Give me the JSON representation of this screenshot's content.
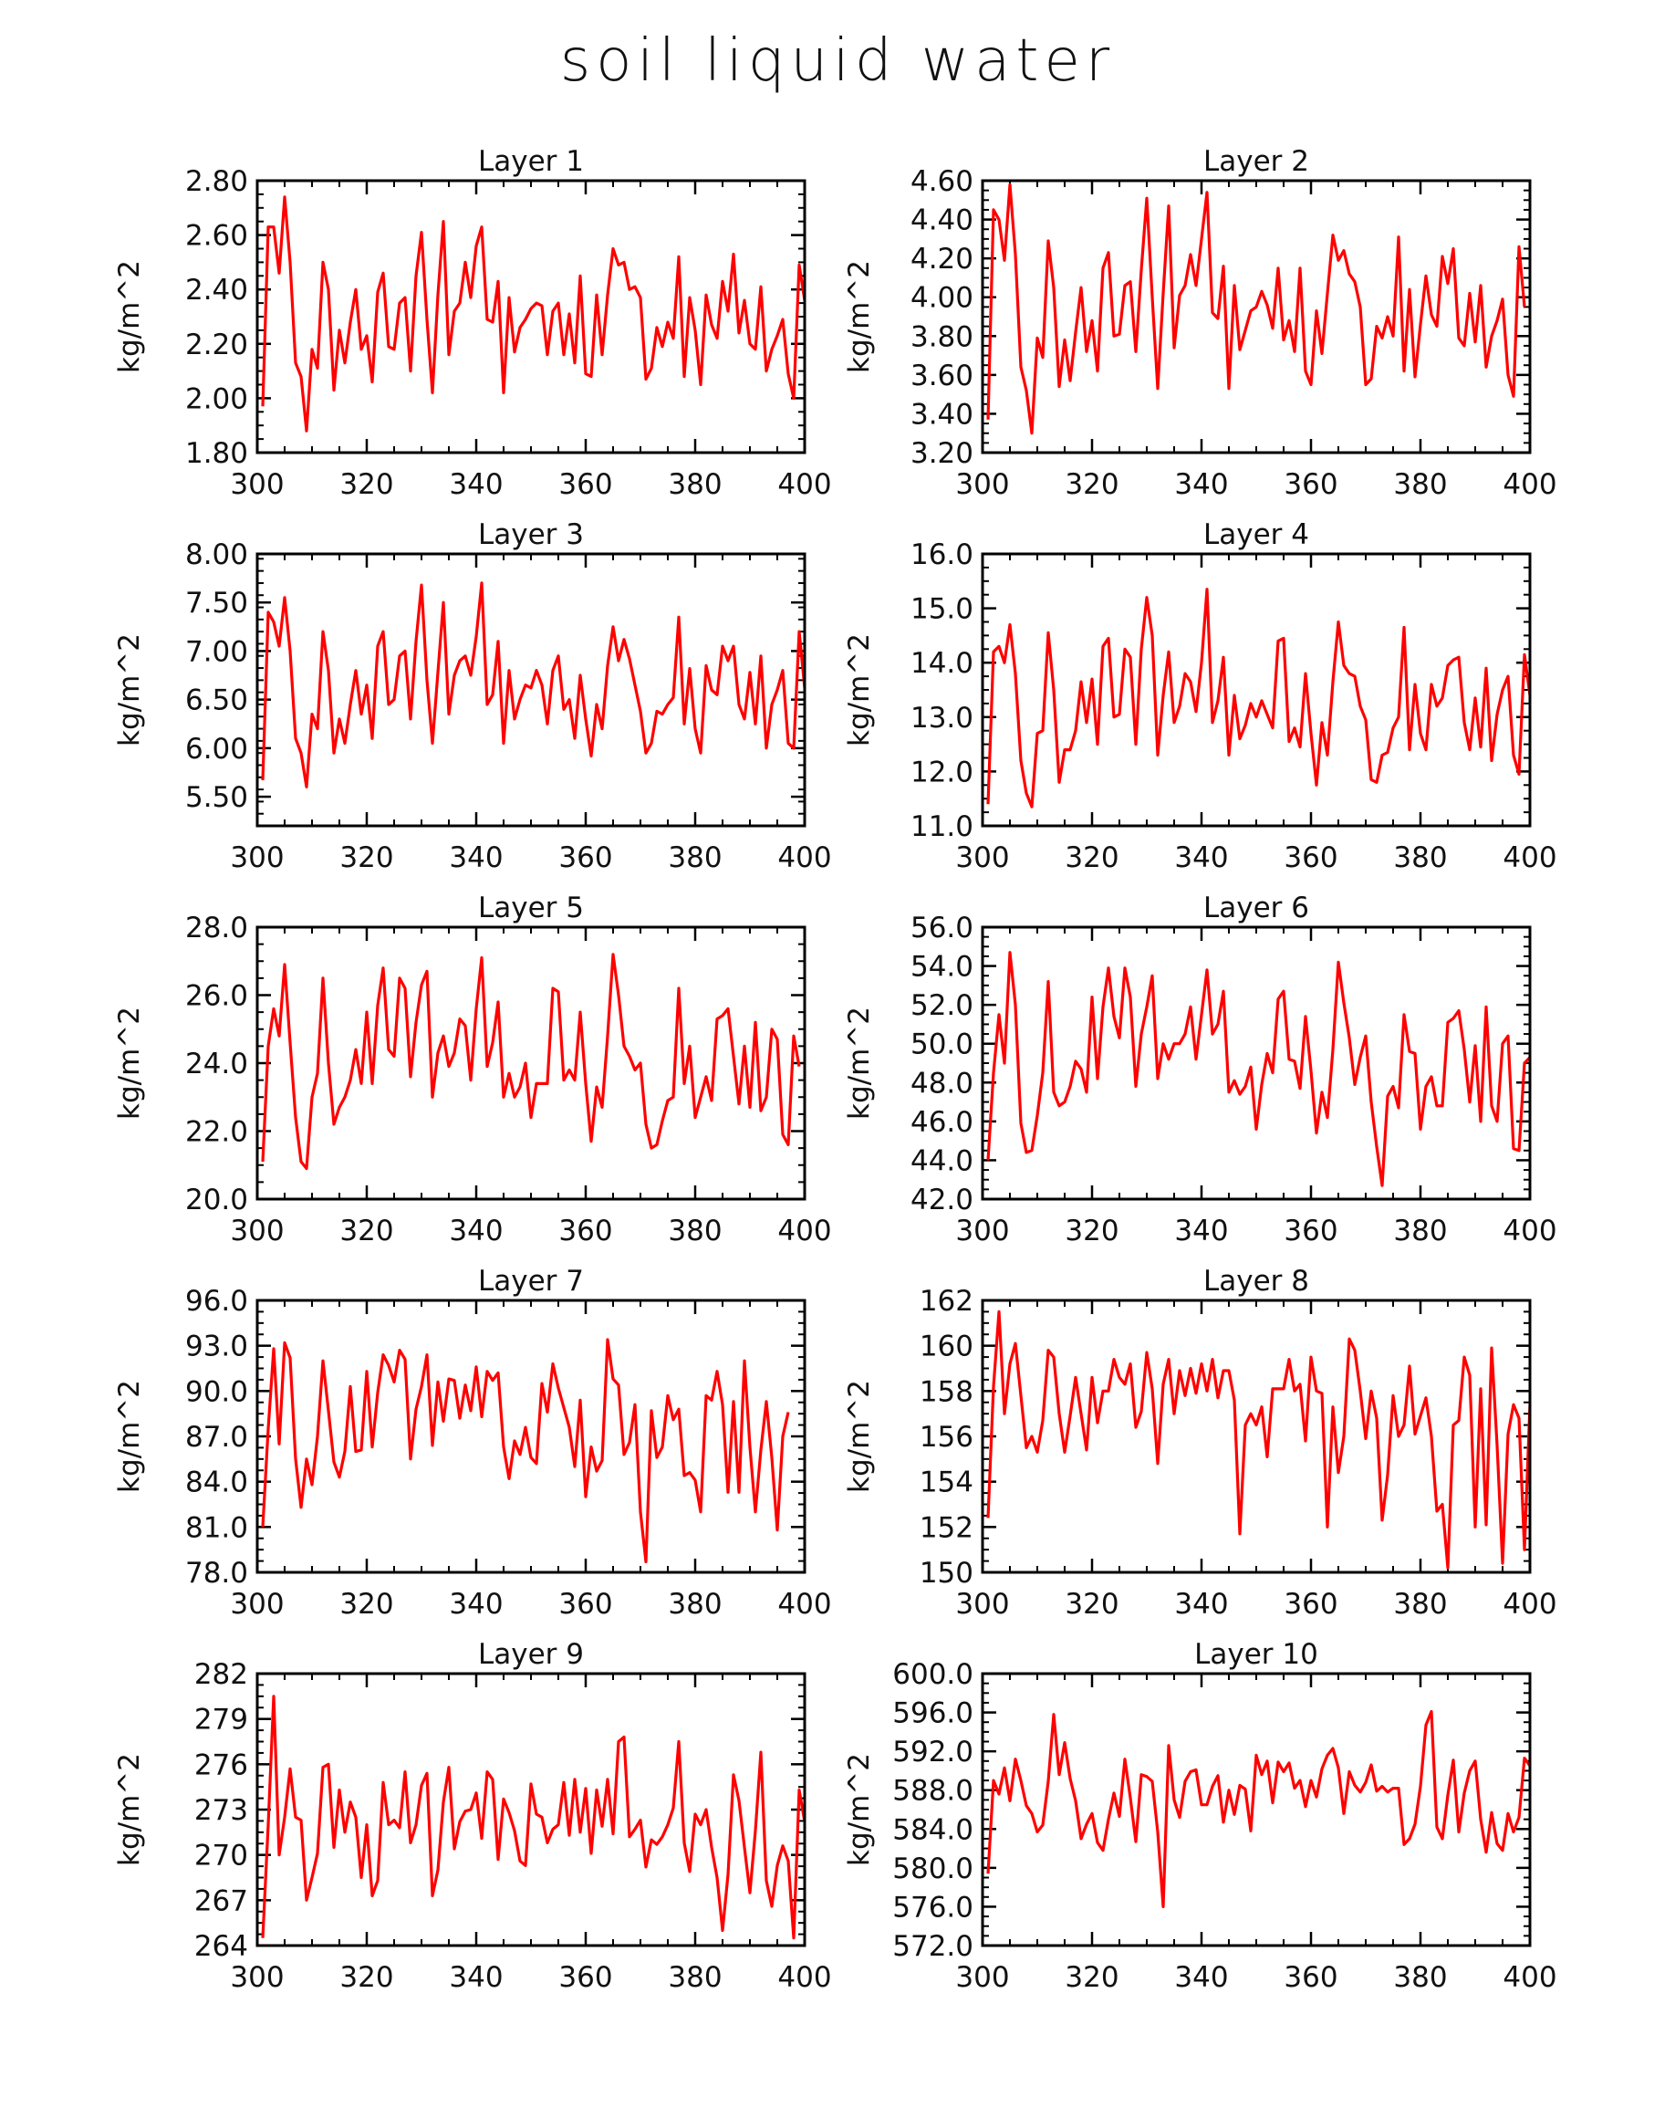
{
  "title": "soil liquid water",
  "chart_data": [
    {
      "type": "line",
      "title": "Layer 1",
      "ylabel": "kg/m^2",
      "xlim": [
        300,
        400
      ],
      "ylim": [
        1.8,
        2.8
      ],
      "xticks": [
        "300",
        "320",
        "340",
        "360",
        "380",
        "400"
      ],
      "yticks": [
        "1.80",
        "2.00",
        "2.20",
        "2.40",
        "2.60",
        "2.80"
      ],
      "x_start": 301,
      "values": [
        1.97,
        2.63,
        2.63,
        2.46,
        2.74,
        2.5,
        2.13,
        2.08,
        1.88,
        2.18,
        2.11,
        2.5,
        2.4,
        2.03,
        2.25,
        2.13,
        2.28,
        2.4,
        2.18,
        2.23,
        2.06,
        2.39,
        2.46,
        2.19,
        2.18,
        2.35,
        2.37,
        2.1,
        2.45,
        2.61,
        2.29,
        2.02,
        2.38,
        2.65,
        2.16,
        2.32,
        2.35,
        2.5,
        2.37,
        2.56,
        2.63,
        2.29,
        2.28,
        2.43,
        2.02,
        2.37,
        2.17,
        2.26,
        2.29,
        2.33,
        2.35,
        2.34,
        2.16,
        2.32,
        2.35,
        2.16,
        2.31,
        2.13,
        2.45,
        2.09,
        2.08,
        2.38,
        2.16,
        2.38,
        2.55,
        2.49,
        2.5,
        2.4,
        2.41,
        2.37,
        2.07,
        2.11,
        2.26,
        2.19,
        2.28,
        2.22,
        2.52,
        2.08,
        2.37,
        2.25,
        2.05,
        2.38,
        2.27,
        2.22,
        2.43,
        2.32,
        2.53,
        2.24,
        2.36,
        2.2,
        2.18,
        2.41,
        2.1,
        2.18,
        2.23,
        2.29,
        2.09,
        2.0,
        2.49,
        2.36
      ]
    },
    {
      "type": "line",
      "title": "Layer 2",
      "ylabel": "kg/m^2",
      "xlim": [
        300,
        400
      ],
      "ylim": [
        3.2,
        4.6
      ],
      "xticks": [
        "300",
        "320",
        "340",
        "360",
        "380",
        "400"
      ],
      "yticks": [
        "3.20",
        "3.40",
        "3.60",
        "3.80",
        "4.00",
        "4.20",
        "4.40",
        "4.60"
      ],
      "x_start": 301,
      "values": [
        3.37,
        4.45,
        4.4,
        4.19,
        4.58,
        4.22,
        3.64,
        3.52,
        3.3,
        3.79,
        3.69,
        4.29,
        4.05,
        3.54,
        3.78,
        3.57,
        3.82,
        4.05,
        3.72,
        3.88,
        3.62,
        4.15,
        4.23,
        3.8,
        3.81,
        4.06,
        4.08,
        3.72,
        4.14,
        4.51,
        4.0,
        3.53,
        4.02,
        4.47,
        3.74,
        4.01,
        4.06,
        4.22,
        4.06,
        4.3,
        4.54,
        3.92,
        3.89,
        4.16,
        3.53,
        4.06,
        3.73,
        3.83,
        3.93,
        3.95,
        4.03,
        3.96,
        3.84,
        4.15,
        3.78,
        3.88,
        3.72,
        4.15,
        3.62,
        3.55,
        3.93,
        3.71,
        4.02,
        4.32,
        4.19,
        4.24,
        4.12,
        4.08,
        3.95,
        3.55,
        3.58,
        3.85,
        3.79,
        3.9,
        3.8,
        4.31,
        3.62,
        4.04,
        3.59,
        3.86,
        4.11,
        3.91,
        3.85,
        4.21,
        4.07,
        4.25,
        3.79,
        3.75,
        4.02,
        3.77,
        4.06,
        3.64,
        3.8,
        3.88,
        3.99,
        3.6,
        3.49,
        4.26,
        3.95
      ]
    },
    {
      "type": "line",
      "title": "Layer 3",
      "ylabel": "kg/m^2",
      "xlim": [
        300,
        400
      ],
      "ylim": [
        5.2,
        8.0
      ],
      "xticks": [
        "300",
        "320",
        "340",
        "360",
        "380",
        "400"
      ],
      "yticks": [
        "5.50",
        "6.00",
        "6.50",
        "7.00",
        "7.50",
        "8.00"
      ],
      "x_start": 301,
      "values": [
        5.67,
        7.4,
        7.3,
        7.05,
        7.55,
        7.0,
        6.1,
        5.95,
        5.6,
        6.35,
        6.2,
        7.2,
        6.8,
        5.95,
        6.3,
        6.05,
        6.45,
        6.8,
        6.35,
        6.65,
        6.1,
        7.05,
        7.2,
        6.45,
        6.5,
        6.95,
        7.0,
        6.3,
        7.1,
        7.68,
        6.7,
        6.05,
        6.78,
        7.5,
        6.35,
        6.75,
        6.9,
        6.95,
        6.75,
        7.15,
        7.7,
        6.45,
        6.55,
        7.1,
        6.05,
        6.8,
        6.3,
        6.5,
        6.65,
        6.62,
        6.8,
        6.65,
        6.25,
        6.8,
        6.95,
        6.4,
        6.5,
        6.1,
        6.75,
        6.3,
        5.92,
        6.45,
        6.2,
        6.85,
        7.25,
        6.9,
        7.12,
        6.92,
        6.65,
        6.38,
        5.95,
        6.05,
        6.38,
        6.35,
        6.45,
        6.52,
        7.35,
        6.25,
        6.82,
        6.2,
        5.95,
        6.85,
        6.6,
        6.55,
        7.05,
        6.9,
        7.05,
        6.45,
        6.3,
        6.78,
        6.25,
        6.95,
        6.0,
        6.45,
        6.6,
        6.8,
        6.05,
        6.0,
        7.2,
        6.62
      ]
    },
    {
      "type": "line",
      "title": "Layer 4",
      "ylabel": "kg/m^2",
      "xlim": [
        300,
        400
      ],
      "ylim": [
        11.0,
        16.0
      ],
      "xticks": [
        "300",
        "320",
        "340",
        "360",
        "380",
        "400"
      ],
      "yticks": [
        "11.0",
        "12.0",
        "13.0",
        "14.0",
        "15.0",
        "16.0"
      ],
      "x_start": 301,
      "values": [
        11.4,
        14.2,
        14.3,
        14.0,
        14.7,
        13.8,
        12.2,
        11.6,
        11.35,
        12.7,
        12.75,
        14.55,
        13.5,
        11.8,
        12.4,
        12.4,
        12.75,
        13.65,
        12.9,
        13.7,
        12.5,
        14.3,
        14.45,
        13.0,
        13.05,
        14.25,
        14.1,
        12.5,
        14.25,
        15.2,
        14.5,
        12.3,
        13.4,
        14.2,
        12.9,
        13.2,
        13.8,
        13.65,
        13.1,
        14.0,
        15.35,
        12.9,
        13.3,
        14.1,
        12.3,
        13.4,
        12.6,
        12.85,
        13.25,
        13.0,
        13.3,
        13.05,
        12.8,
        14.4,
        14.45,
        12.55,
        12.8,
        12.45,
        13.8,
        12.7,
        11.75,
        12.9,
        12.3,
        13.65,
        14.75,
        13.95,
        13.8,
        13.75,
        13.2,
        12.95,
        11.85,
        11.8,
        12.3,
        12.35,
        12.8,
        13.0,
        14.65,
        12.4,
        13.6,
        12.7,
        12.4,
        13.6,
        13.2,
        13.35,
        13.95,
        14.05,
        14.1,
        12.9,
        12.4,
        13.35,
        12.45,
        13.9,
        12.2,
        13.05,
        13.5,
        13.75,
        12.3,
        11.95,
        14.15,
        13.4
      ]
    },
    {
      "type": "line",
      "title": "Layer 5",
      "ylabel": "kg/m^2",
      "xlim": [
        300,
        400
      ],
      "ylim": [
        20.0,
        28.0
      ],
      "xticks": [
        "300",
        "320",
        "340",
        "360",
        "380",
        "400"
      ],
      "yticks": [
        "20.0",
        "22.0",
        "24.0",
        "26.0",
        "28.0"
      ],
      "x_start": 301,
      "values": [
        21.1,
        24.5,
        25.6,
        24.8,
        26.9,
        24.6,
        22.4,
        21.1,
        20.9,
        23.0,
        23.7,
        26.5,
        24.0,
        22.2,
        22.7,
        23.0,
        23.5,
        24.4,
        23.4,
        25.5,
        23.4,
        25.7,
        26.8,
        24.4,
        24.2,
        26.5,
        26.2,
        23.6,
        25.2,
        26.3,
        26.7,
        23.0,
        24.3,
        24.8,
        23.9,
        24.3,
        25.3,
        25.1,
        23.5,
        25.6,
        27.1,
        23.9,
        24.6,
        25.8,
        23.0,
        23.7,
        23.0,
        23.3,
        24.0,
        22.4,
        23.4,
        23.4,
        23.4,
        26.2,
        26.1,
        23.5,
        23.8,
        23.5,
        25.5,
        23.4,
        21.7,
        23.3,
        22.7,
        24.8,
        27.2,
        26.0,
        24.5,
        24.2,
        23.8,
        24.0,
        22.2,
        21.5,
        21.6,
        22.3,
        22.9,
        23.0,
        26.2,
        23.4,
        24.5,
        22.4,
        23.0,
        23.6,
        22.9,
        25.3,
        25.4,
        25.6,
        24.2,
        22.8,
        24.5,
        22.7,
        25.2,
        22.6,
        23.0,
        25.0,
        24.7,
        21.9,
        21.6,
        24.8,
        23.9
      ]
    },
    {
      "type": "line",
      "title": "Layer 6",
      "ylabel": "kg/m^2",
      "xlim": [
        300,
        400
      ],
      "ylim": [
        42.0,
        56.0
      ],
      "xticks": [
        "300",
        "320",
        "340",
        "360",
        "380",
        "400"
      ],
      "yticks": [
        "42.0",
        "44.0",
        "46.0",
        "48.0",
        "50.0",
        "52.0",
        "54.0",
        "56.0"
      ],
      "x_start": 301,
      "values": [
        44.0,
        48.5,
        51.5,
        49.0,
        54.7,
        52.0,
        45.9,
        44.4,
        44.5,
        46.3,
        48.5,
        53.2,
        47.5,
        46.8,
        47.0,
        47.8,
        49.1,
        48.7,
        47.5,
        52.4,
        48.2,
        51.9,
        53.9,
        51.4,
        50.3,
        53.9,
        52.4,
        47.8,
        50.5,
        51.9,
        53.5,
        48.2,
        50.0,
        49.2,
        50.0,
        50.0,
        50.5,
        51.9,
        49.2,
        51.5,
        53.8,
        50.5,
        51.0,
        52.7,
        47.5,
        48.1,
        47.4,
        47.8,
        48.8,
        45.6,
        47.9,
        49.5,
        48.5,
        52.3,
        52.7,
        49.2,
        49.1,
        47.7,
        51.4,
        48.6,
        45.4,
        47.5,
        46.2,
        49.7,
        54.2,
        52.1,
        50.3,
        47.9,
        49.3,
        50.4,
        47.0,
        44.7,
        42.7,
        47.3,
        47.8,
        46.7,
        51.5,
        49.6,
        49.5,
        45.6,
        47.8,
        48.3,
        46.8,
        46.8,
        51.1,
        51.3,
        51.7,
        49.7,
        47.0,
        49.9,
        46.0,
        51.9,
        46.8,
        46.0,
        50.0,
        50.4,
        44.6,
        44.5,
        49.0,
        49.3
      ]
    },
    {
      "type": "line",
      "title": "Layer 7",
      "ylabel": "kg/m^2",
      "xlim": [
        300,
        400
      ],
      "ylim": [
        78.0,
        96.0
      ],
      "xticks": [
        "300",
        "320",
        "340",
        "360",
        "380",
        "400"
      ],
      "yticks": [
        "78.0",
        "81.0",
        "84.0",
        "87.0",
        "90.0",
        "93.0",
        "96.0"
      ],
      "x_start": 301,
      "values": [
        81.0,
        87.5,
        92.8,
        86.5,
        93.2,
        92.2,
        85.5,
        82.3,
        85.5,
        83.8,
        87.0,
        92.0,
        88.7,
        85.3,
        84.3,
        86.0,
        90.3,
        86.0,
        86.1,
        91.3,
        86.3,
        89.9,
        92.4,
        91.7,
        90.6,
        92.7,
        92.1,
        85.5,
        88.8,
        90.3,
        92.4,
        86.4,
        90.6,
        88.0,
        90.8,
        90.7,
        88.2,
        90.4,
        88.7,
        91.6,
        88.3,
        91.3,
        90.7,
        91.2,
        86.3,
        84.2,
        86.7,
        85.8,
        87.6,
        85.6,
        85.2,
        90.5,
        88.6,
        91.8,
        90.2,
        88.9,
        87.6,
        85.0,
        89.4,
        83.0,
        86.3,
        84.7,
        85.4,
        93.4,
        90.8,
        90.4,
        85.8,
        86.6,
        89.1,
        82.0,
        78.7,
        88.7,
        85.6,
        86.3,
        89.7,
        88.1,
        88.8,
        84.4,
        84.6,
        84.1,
        82.0,
        89.7,
        89.4,
        91.3,
        89.1,
        83.3,
        89.3,
        83.3,
        92.0,
        86.3,
        82.0,
        86.1,
        89.3,
        85.6,
        80.8,
        87.0,
        88.6
      ]
    },
    {
      "type": "line",
      "title": "Layer 8",
      "ylabel": "kg/m^2",
      "xlim": [
        300,
        400
      ],
      "ylim": [
        150,
        162
      ],
      "xticks": [
        "300",
        "320",
        "340",
        "360",
        "380",
        "400"
      ],
      "yticks": [
        "150",
        "152",
        "154",
        "156",
        "158",
        "160",
        "162"
      ],
      "x_start": 301,
      "values": [
        152.4,
        158.2,
        161.5,
        157.0,
        159.2,
        160.1,
        157.8,
        155.5,
        156.0,
        155.3,
        156.7,
        159.8,
        159.5,
        157.0,
        155.3,
        156.9,
        158.6,
        157.0,
        155.4,
        158.6,
        156.6,
        158.0,
        158.0,
        159.4,
        158.6,
        158.3,
        159.2,
        156.4,
        157.1,
        159.7,
        158.1,
        154.8,
        158.3,
        159.4,
        157.0,
        158.9,
        157.8,
        159.0,
        157.9,
        159.2,
        158.0,
        159.4,
        157.7,
        158.9,
        158.9,
        157.6,
        151.7,
        156.5,
        157.0,
        156.5,
        157.3,
        155.1,
        158.1,
        158.1,
        158.1,
        159.4,
        158.0,
        158.3,
        155.8,
        159.5,
        158.0,
        157.9,
        152.0,
        157.3,
        154.4,
        156.0,
        160.3,
        159.8,
        158.0,
        155.9,
        158.0,
        156.8,
        152.3,
        154.3,
        157.8,
        156.0,
        156.5,
        159.1,
        156.1,
        156.9,
        157.7,
        156.0,
        152.7,
        153.0,
        150.2,
        156.5,
        156.7,
        159.5,
        158.7,
        152.0,
        158.1,
        152.1,
        159.9,
        155.6,
        150.4,
        156.1,
        157.4,
        156.8,
        151.0,
        157.4
      ]
    },
    {
      "type": "line",
      "title": "Layer 9",
      "ylabel": "kg/m^2",
      "xlim": [
        300,
        400
      ],
      "ylim": [
        264,
        282
      ],
      "xticks": [
        "300",
        "320",
        "340",
        "360",
        "380",
        "400"
      ],
      "yticks": [
        "264",
        "267",
        "270",
        "273",
        "276",
        "279",
        "282"
      ],
      "x_start": 301,
      "values": [
        264.5,
        272.0,
        280.5,
        270.0,
        272.5,
        275.7,
        272.5,
        272.3,
        267.0,
        268.5,
        270.1,
        275.8,
        276.0,
        270.5,
        274.3,
        271.5,
        273.5,
        272.5,
        268.5,
        272.0,
        267.3,
        268.3,
        274.8,
        272.0,
        272.3,
        271.8,
        275.5,
        270.8,
        272.0,
        274.6,
        275.4,
        267.3,
        269.0,
        273.5,
        275.8,
        270.4,
        272.2,
        272.9,
        273.0,
        274.1,
        271.1,
        275.5,
        275.0,
        269.7,
        273.7,
        272.8,
        271.6,
        269.6,
        269.3,
        274.7,
        272.7,
        272.5,
        270.8,
        271.7,
        272.0,
        274.8,
        271.3,
        275.0,
        271.5,
        274.4,
        270.1,
        274.3,
        271.9,
        275.0,
        271.4,
        277.5,
        277.8,
        271.2,
        271.7,
        272.3,
        269.2,
        271.0,
        270.7,
        271.2,
        272.0,
        273.1,
        277.5,
        270.8,
        268.9,
        272.7,
        272.0,
        273.0,
        270.5,
        268.5,
        265.0,
        268.7,
        275.3,
        273.6,
        270.5,
        267.5,
        271.6,
        276.8,
        268.3,
        266.6,
        269.3,
        270.6,
        269.6,
        264.5,
        274.3,
        272.2
      ]
    },
    {
      "type": "line",
      "title": "Layer 10",
      "ylabel": "kg/m^2",
      "xlim": [
        300,
        400
      ],
      "ylim": [
        572,
        600
      ],
      "xticks": [
        "300",
        "320",
        "340",
        "360",
        "380",
        "400"
      ],
      "yticks": [
        "572.0",
        "576.0",
        "580.0",
        "584.0",
        "588.0",
        "592.0",
        "596.0",
        "600.0"
      ],
      "x_start": 301,
      "values": [
        579.4,
        589.0,
        587.6,
        590.3,
        586.9,
        591.2,
        589.0,
        586.4,
        585.6,
        583.7,
        584.4,
        588.9,
        595.8,
        589.6,
        592.9,
        589.2,
        586.9,
        583.0,
        584.5,
        585.6,
        582.6,
        581.8,
        585.0,
        587.7,
        585.3,
        591.2,
        587.2,
        582.7,
        589.6,
        589.4,
        588.9,
        583.7,
        576.0,
        592.6,
        587.0,
        585.2,
        588.9,
        589.9,
        590.1,
        586.5,
        586.5,
        588.4,
        589.5,
        584.7,
        588.0,
        585.5,
        588.5,
        588.1,
        583.8,
        591.6,
        589.6,
        591.0,
        586.7,
        590.9,
        589.9,
        590.8,
        588.2,
        589.0,
        586.3,
        589.0,
        587.3,
        590.2,
        591.6,
        592.3,
        590.3,
        585.6,
        589.9,
        588.5,
        587.8,
        588.8,
        590.6,
        587.9,
        588.4,
        587.8,
        588.2,
        588.2,
        582.4,
        583.0,
        584.5,
        588.4,
        594.7,
        596.1,
        584.2,
        583.0,
        587.5,
        591.1,
        583.7,
        587.7,
        590.0,
        591.0,
        585.0,
        581.6,
        585.7,
        582.5,
        581.8,
        585.6,
        583.7,
        585.2,
        591.3,
        590.5
      ]
    }
  ]
}
